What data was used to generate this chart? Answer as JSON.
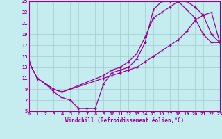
{
  "xlabel": "Windchill (Refroidissement éolien,°C)",
  "xlim": [
    0,
    23
  ],
  "ylim": [
    5,
    25
  ],
  "xticks": [
    0,
    1,
    2,
    3,
    4,
    5,
    6,
    7,
    8,
    9,
    10,
    11,
    12,
    13,
    14,
    15,
    16,
    17,
    18,
    19,
    20,
    21,
    22,
    23
  ],
  "yticks": [
    5,
    7,
    9,
    11,
    13,
    15,
    17,
    19,
    21,
    23,
    25
  ],
  "bg_color": "#c5ecee",
  "line_color": "#990099",
  "grid_color": "#a0cccc",
  "curve1_x": [
    0,
    1,
    2,
    3,
    4,
    5,
    6,
    7,
    8,
    9,
    10,
    11,
    12,
    13,
    14,
    15,
    16,
    17,
    18,
    19,
    20,
    21,
    22,
    23
  ],
  "curve1_y": [
    14,
    11,
    10,
    8.5,
    7.5,
    7,
    5.5,
    5.5,
    5.5,
    10,
    12,
    12.5,
    13,
    14.5,
    17.5,
    23.5,
    25,
    25,
    25,
    23.5,
    22,
    19,
    17.5,
    17.5
  ],
  "curve2_x": [
    0,
    1,
    3,
    4,
    9,
    10,
    11,
    12,
    13,
    14,
    15,
    16,
    17,
    18,
    19,
    20,
    21,
    22,
    23
  ],
  "curve2_y": [
    14,
    11,
    9,
    8.5,
    11.5,
    12.5,
    13,
    14,
    15.5,
    18.5,
    22,
    23,
    24,
    25,
    25,
    24,
    22.5,
    19,
    17.5
  ],
  "curve3_x": [
    0,
    1,
    3,
    4,
    9,
    10,
    11,
    12,
    13,
    14,
    15,
    16,
    17,
    18,
    19,
    20,
    21,
    22,
    23
  ],
  "curve3_y": [
    14,
    11,
    9,
    8.5,
    11,
    11.5,
    12,
    12.5,
    13,
    14,
    15,
    16,
    17,
    18,
    19.5,
    21.5,
    22.5,
    23,
    17.5
  ]
}
